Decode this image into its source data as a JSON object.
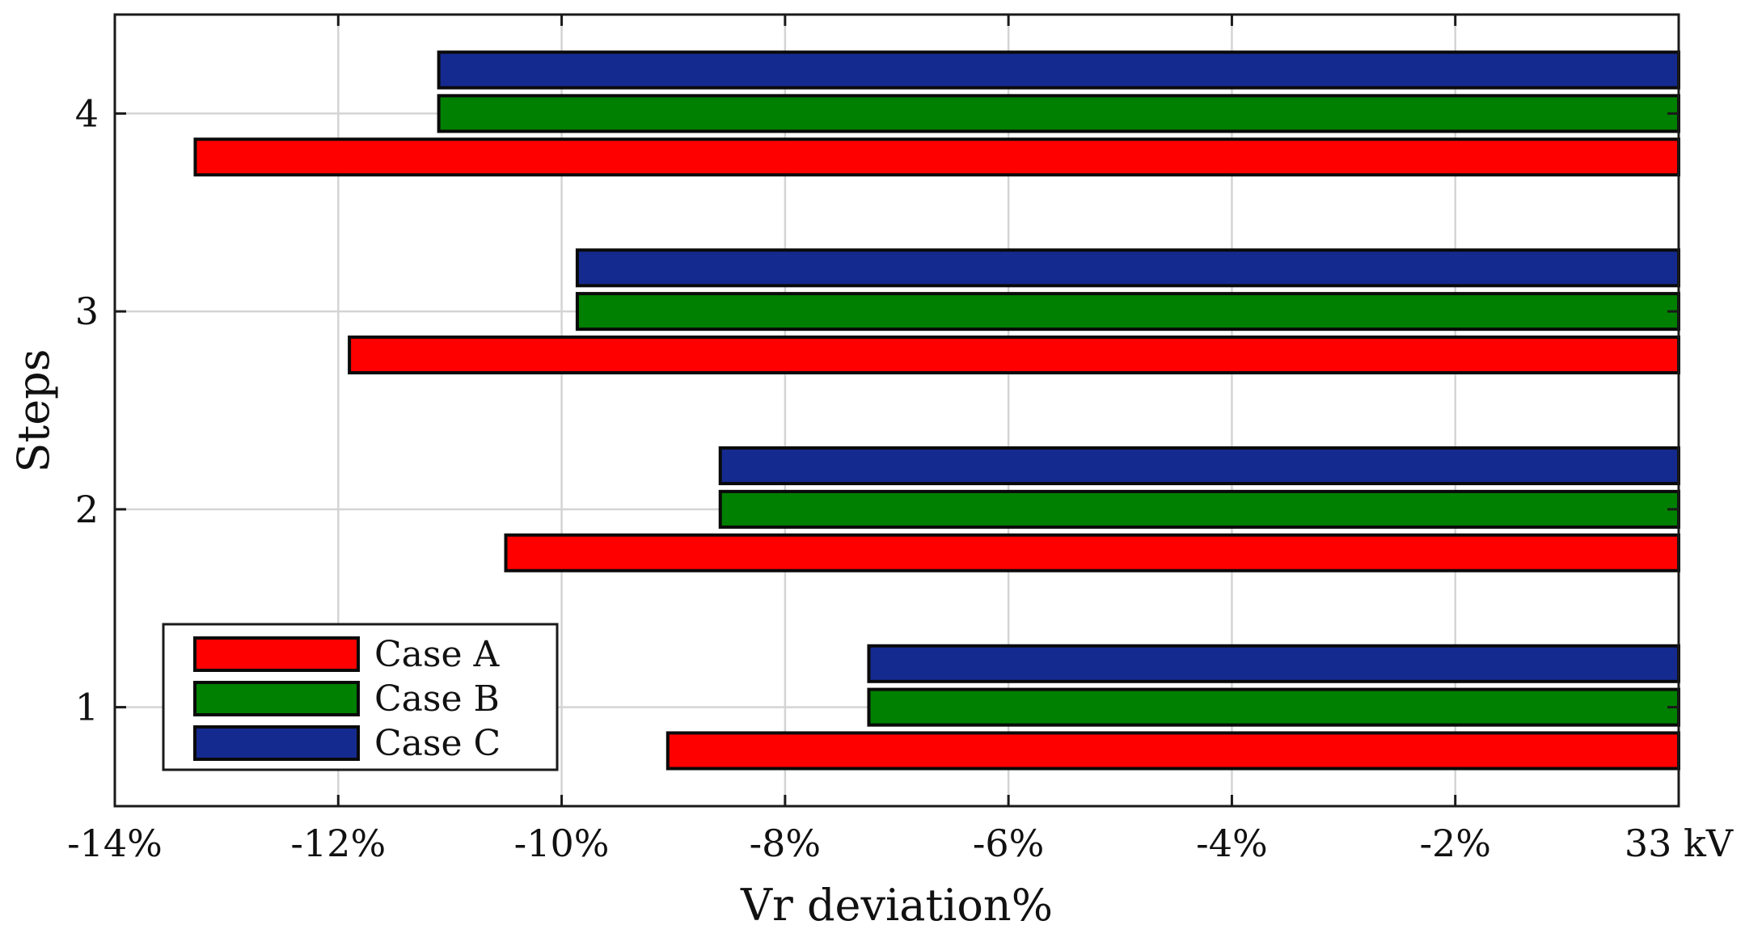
{
  "chart_data": {
    "type": "bar",
    "orientation": "horizontal",
    "categories": [
      "1",
      "2",
      "3",
      "4"
    ],
    "series": [
      {
        "name": "Case A",
        "color": "#ff0000",
        "values": [
          -9.05,
          -10.5,
          -11.9,
          -13.28
        ]
      },
      {
        "name": "Case B",
        "color": "#008000",
        "values": [
          -7.25,
          -8.58,
          -9.86,
          -11.1
        ]
      },
      {
        "name": "Case C",
        "color": "#152a8f",
        "values": [
          -7.25,
          -8.58,
          -9.86,
          -11.1
        ]
      }
    ],
    "xlabel": "Vr deviation%",
    "ylabel": "Steps",
    "xlim": [
      -14,
      0
    ],
    "ylim": [
      0.5,
      4.5
    ],
    "xticks": [
      {
        "value": -14,
        "label": "-14%"
      },
      {
        "value": -12,
        "label": "-12%"
      },
      {
        "value": -10,
        "label": "-10%"
      },
      {
        "value": -8,
        "label": "-8%"
      },
      {
        "value": -6,
        "label": "-6%"
      },
      {
        "value": -4,
        "label": "-4%"
      },
      {
        "value": -2,
        "label": "-2%"
      },
      {
        "value": 0,
        "label": "33 kV"
      }
    ],
    "yticks": [
      {
        "value": 1,
        "label": "1"
      },
      {
        "value": 2,
        "label": "2"
      },
      {
        "value": 3,
        "label": "3"
      },
      {
        "value": 4,
        "label": "4"
      }
    ],
    "grid": true,
    "legend_position": "bottom-left"
  }
}
